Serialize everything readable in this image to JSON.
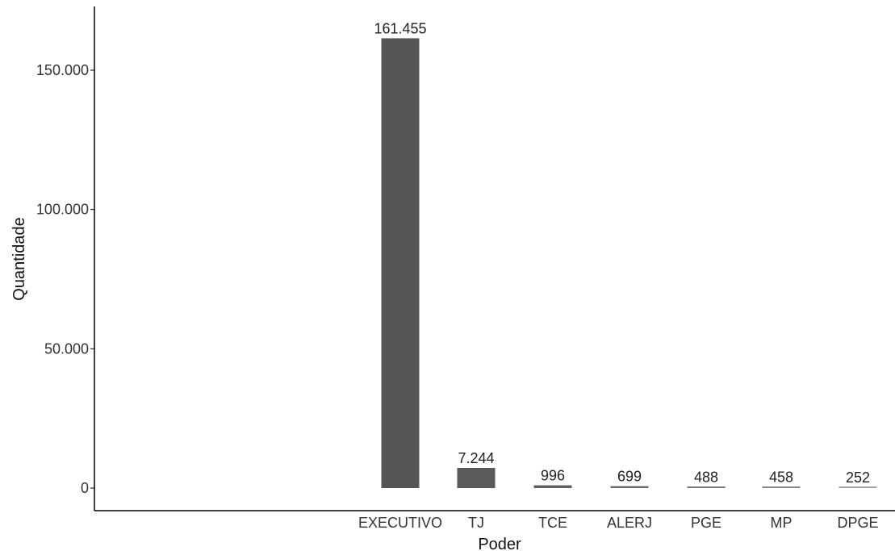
{
  "chart_data": {
    "type": "bar",
    "categories": [
      "EXECUTIVO",
      "TJ",
      "TCE",
      "ALERJ",
      "PGE",
      "MP",
      "DPGE"
    ],
    "values": [
      161455,
      7244,
      996,
      699,
      488,
      458,
      252
    ],
    "data_labels": [
      "161.455",
      "7.244",
      "996",
      "699",
      "488",
      "458",
      "252"
    ],
    "xlabel": "Poder",
    "ylabel": "Quantidade",
    "ylim": [
      0,
      170000
    ],
    "yticks": [
      0,
      50000,
      100000,
      150000
    ],
    "ytick_labels": [
      "0",
      "50.000",
      "100.000",
      "150.000"
    ],
    "bar_colors": [
      "#555555",
      "#5a5a5a",
      "#606060",
      "#6a6a6a",
      "#777777",
      "#888888",
      "#a5a5a5"
    ],
    "grid": false,
    "legend": "none"
  }
}
